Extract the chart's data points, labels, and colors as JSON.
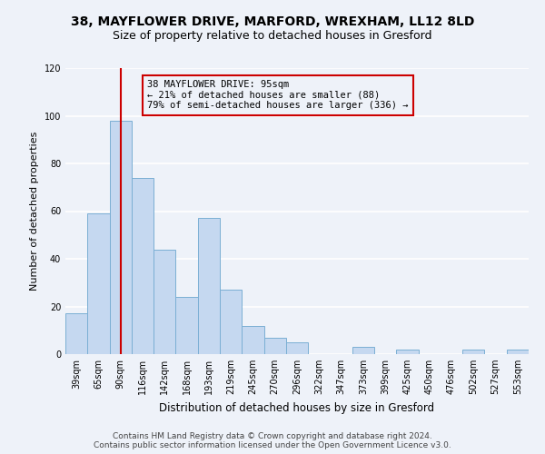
{
  "title": "38, MAYFLOWER DRIVE, MARFORD, WREXHAM, LL12 8LD",
  "subtitle": "Size of property relative to detached houses in Gresford",
  "xlabel": "Distribution of detached houses by size in Gresford",
  "ylabel": "Number of detached properties",
  "bar_labels": [
    "39sqm",
    "65sqm",
    "90sqm",
    "116sqm",
    "142sqm",
    "168sqm",
    "193sqm",
    "219sqm",
    "245sqm",
    "270sqm",
    "296sqm",
    "322sqm",
    "347sqm",
    "373sqm",
    "399sqm",
    "425sqm",
    "450sqm",
    "476sqm",
    "502sqm",
    "527sqm",
    "553sqm"
  ],
  "bar_values": [
    17,
    59,
    98,
    74,
    44,
    24,
    57,
    27,
    12,
    7,
    5,
    0,
    0,
    3,
    0,
    2,
    0,
    0,
    2,
    0,
    2
  ],
  "bar_color": "#c5d8f0",
  "bar_edgecolor": "#7bafd4",
  "vline_index": 2,
  "vline_color": "#cc0000",
  "ylim": [
    0,
    120
  ],
  "yticks": [
    0,
    20,
    40,
    60,
    80,
    100,
    120
  ],
  "annotation_box_text": "38 MAYFLOWER DRIVE: 95sqm\n← 21% of detached houses are smaller (88)\n79% of semi-detached houses are larger (336) →",
  "annotation_box_edgecolor": "#cc0000",
  "footer_line1": "Contains HM Land Registry data © Crown copyright and database right 2024.",
  "footer_line2": "Contains public sector information licensed under the Open Government Licence v3.0.",
  "background_color": "#eef2f9",
  "grid_color": "#ffffff",
  "title_fontsize": 10,
  "subtitle_fontsize": 9,
  "ann_fontsize": 7.5,
  "ylabel_fontsize": 8,
  "xlabel_fontsize": 8.5,
  "tick_fontsize": 7,
  "footer_fontsize": 6.5
}
